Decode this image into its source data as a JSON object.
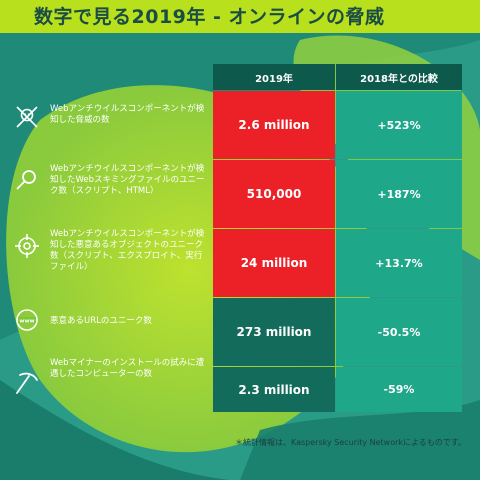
{
  "title": "数字で見る2019年 - オンラインの脅威",
  "table": {
    "headers": [
      "2019年",
      "2018年との比較"
    ],
    "rows": [
      {
        "icon": "skull-crossbones-icon",
        "label": "Webアンチウイルスコンポーネントが検知した脅威の数",
        "value": "2.6 million",
        "change": "+523%",
        "value_color": "#ec2027"
      },
      {
        "icon": "magnifier-icon",
        "label": "Webアンチウイルスコンポーネントが検知したWebスキミングファイルのユニーク数（スクリプト、HTML）",
        "value": "510,000",
        "change": "+187%",
        "value_color": "#ec2027"
      },
      {
        "icon": "target-crosshair-icon",
        "label": "Webアンチウイルスコンポーネントが検知した悪意あるオブジェクトのユニーク数（スクリプト、エクスプロイト、実行ファイル）",
        "value": "24 million",
        "change": "+13.7%",
        "value_color": "#ec2027"
      },
      {
        "icon": "www-globe-icon",
        "label": "悪意あるURLのユニーク数",
        "value": "273 million",
        "change": "-50.5%",
        "value_color": "#136b5b"
      },
      {
        "icon": "pickaxe-icon",
        "label": "Webマイナーのインストールの試みに遭遇したコンピューターの数",
        "value": "2.3 million",
        "change": "-59%",
        "value_color": "#136b5b"
      }
    ]
  },
  "footnote": "＊統計情報は、Kaspersky Security Networkによるものです。",
  "colors": {
    "background": "#2a9b86",
    "lime": "#b8e01c",
    "header": "#0d5a4c",
    "red": "#ec2027",
    "dark_teal": "#136b5b",
    "change_cell": "#1fa78a"
  }
}
